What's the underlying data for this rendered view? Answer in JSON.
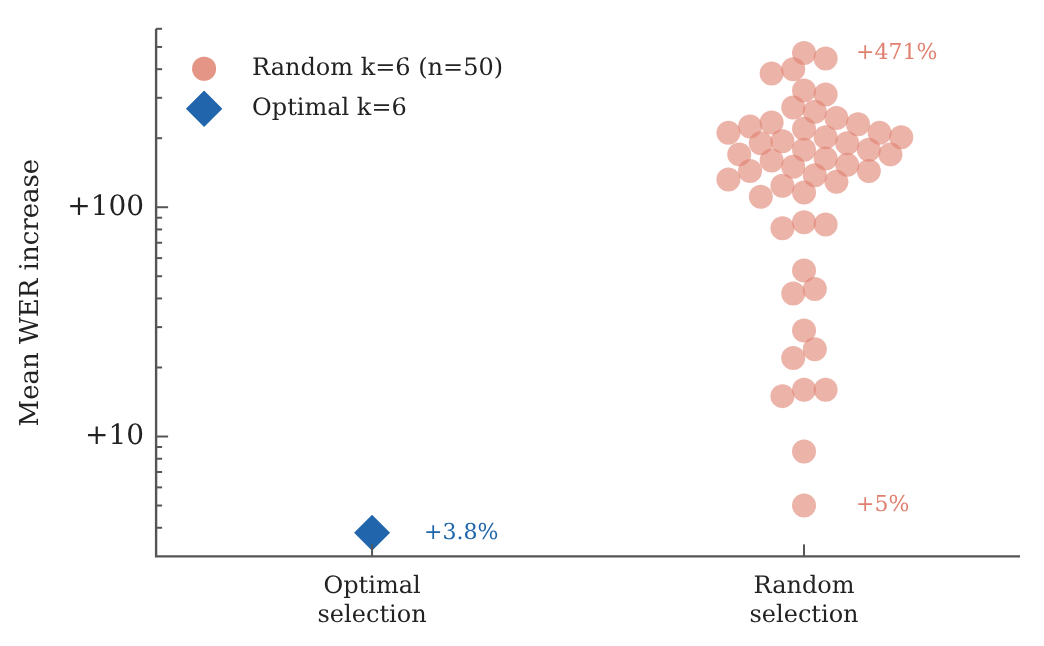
{
  "chart_data": {
    "type": "scatter",
    "ylabel": "Mean WER increase",
    "categories": [
      "Optimal selection",
      "Random selection"
    ],
    "series": [
      {
        "name": "Random k=6 (n=50)",
        "color": "#e08070",
        "marker": "circle",
        "x": [
          "Random selection",
          "Random selection",
          "Random selection",
          "Random selection",
          "Random selection",
          "Random selection",
          "Random selection",
          "Random selection",
          "Random selection",
          "Random selection",
          "Random selection",
          "Random selection",
          "Random selection",
          "Random selection",
          "Random selection",
          "Random selection",
          "Random selection",
          "Random selection",
          "Random selection",
          "Random selection",
          "Random selection",
          "Random selection",
          "Random selection",
          "Random selection",
          "Random selection",
          "Random selection",
          "Random selection",
          "Random selection",
          "Random selection",
          "Random selection",
          "Random selection",
          "Random selection",
          "Random selection",
          "Random selection",
          "Random selection",
          "Random selection",
          "Random selection",
          "Random selection",
          "Random selection",
          "Random selection",
          "Random selection",
          "Random selection",
          "Random selection",
          "Random selection",
          "Random selection",
          "Random selection",
          "Random selection",
          "Random selection",
          "Random selection",
          "Random selection"
        ],
        "values": [
          471,
          445,
          400,
          383,
          323,
          310,
          272,
          261,
          245,
          234,
          230,
          225,
          220,
          211,
          211,
          202,
          202,
          194,
          190,
          190,
          178,
          178,
          170,
          170,
          163,
          160,
          153,
          150,
          144,
          144,
          138,
          132,
          129,
          124,
          116,
          111,
          86,
          84,
          81,
          53,
          44,
          42,
          29,
          24,
          22,
          16,
          16,
          15,
          8.6,
          5
        ]
      },
      {
        "name": "Optimal k=6",
        "color": "#2166ac",
        "marker": "diamond",
        "x": [
          "Optimal selection"
        ],
        "values": [
          3.8
        ]
      }
    ],
    "log": "y",
    "ylim": [
      3,
      600
    ],
    "yticks": [
      {
        "value": 4,
        "label": null
      },
      {
        "value": 5,
        "label": null
      },
      {
        "value": 6,
        "label": null
      },
      {
        "value": 7,
        "label": null
      },
      {
        "value": 8,
        "label": null
      },
      {
        "value": 9,
        "label": null
      },
      {
        "value": 10,
        "label": "+10"
      },
      {
        "value": 20,
        "label": null
      },
      {
        "value": 30,
        "label": null
      },
      {
        "value": 40,
        "label": null
      },
      {
        "value": 50,
        "label": null
      },
      {
        "value": 60,
        "label": null
      },
      {
        "value": 70,
        "label": null
      },
      {
        "value": 80,
        "label": null
      },
      {
        "value": 90,
        "label": null
      },
      {
        "value": 100,
        "label": "+100"
      },
      {
        "value": 200,
        "label": null
      },
      {
        "value": 300,
        "label": null
      },
      {
        "value": 400,
        "label": null
      },
      {
        "value": 500,
        "label": null
      },
      {
        "value": 600,
        "label": null
      }
    ],
    "legend": "top left",
    "annotations": [
      {
        "text": "+471%",
        "x": "Random selection",
        "y": 471
      },
      {
        "text": "+5%",
        "x": "Random selection",
        "y": 5
      },
      {
        "text": "+3.8%",
        "x": "Optimal selection",
        "y": 3.8
      }
    ]
  }
}
